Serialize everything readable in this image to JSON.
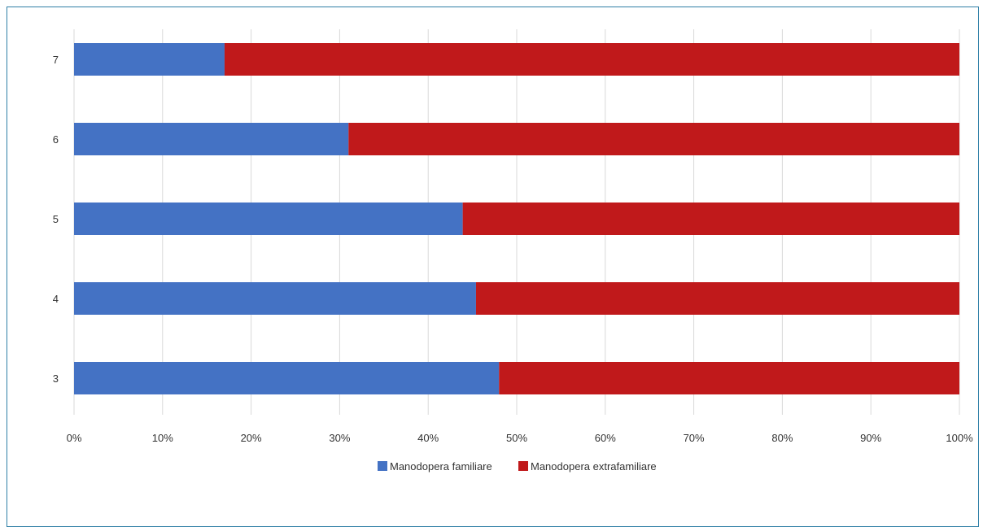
{
  "chart_data": {
    "type": "bar",
    "orientation": "horizontal",
    "stacked": "percent",
    "categories": [
      "3",
      "4",
      "5",
      "6",
      "7"
    ],
    "series": [
      {
        "name": "Manodopera familiare",
        "values": [
          48,
          45.4,
          43.9,
          31,
          17
        ],
        "color": "#4472c4"
      },
      {
        "name": "Manodopera extrafamiliare",
        "values": [
          52,
          54.6,
          56.1,
          69,
          83
        ],
        "color": "#c0191b"
      }
    ],
    "x_ticks": [
      "0%",
      "10%",
      "20%",
      "30%",
      "40%",
      "50%",
      "60%",
      "70%",
      "80%",
      "90%",
      "100%"
    ],
    "xlim": [
      0,
      100
    ],
    "grid": "vertical",
    "legend": "bottom-center",
    "title": "",
    "xlabel": "",
    "ylabel": ""
  }
}
